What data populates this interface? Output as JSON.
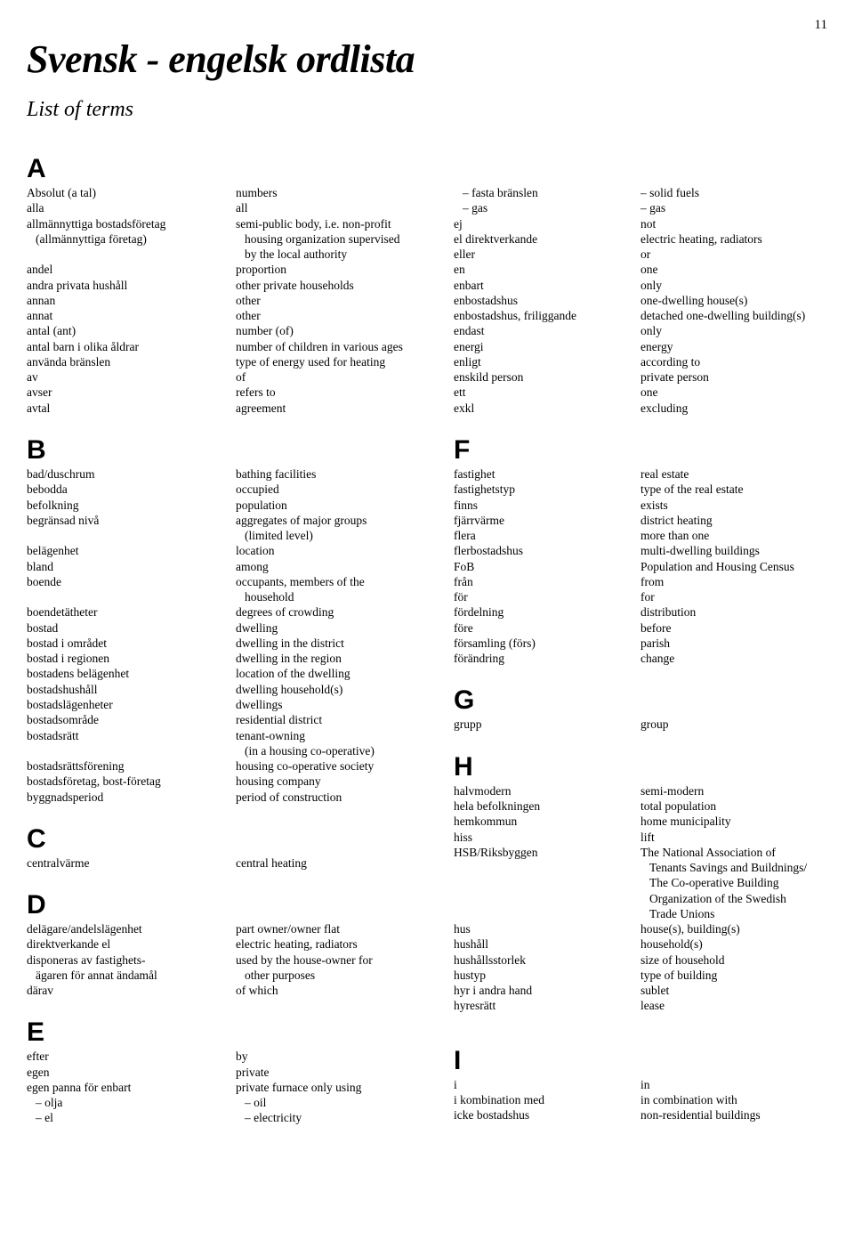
{
  "page_number": "11",
  "title": "Svensk - engelsk ordlista",
  "subtitle": "List of terms",
  "A_sv": [
    "Absolut (a tal)",
    "alla",
    "allmännyttiga bostadsföretag",
    "  (allmännyttiga företag)",
    "",
    "andel",
    "andra privata hushåll",
    "annan",
    "annat",
    "antal (ant)",
    "antal barn i olika åldrar",
    "använda bränslen",
    "av",
    "avser",
    "avtal"
  ],
  "A_en": [
    "numbers",
    "all",
    "semi-public body, i.e. non-profit",
    "  housing organization supervised",
    "  by the local authority",
    "proportion",
    "other private households",
    "other",
    "other",
    "number (of)",
    "number of children in various ages",
    "type of energy used for heating",
    "of",
    "refers to",
    "agreement"
  ],
  "B_sv": [
    "bad/duschrum",
    "bebodda",
    "befolkning",
    "begränsad nivå",
    "",
    "belägenhet",
    "bland",
    "boende",
    "",
    "boendetätheter",
    "bostad",
    "bostad i området",
    "bostad i regionen",
    "bostadens belägenhet",
    "bostadshushåll",
    "bostadslägenheter",
    "bostadsområde",
    "bostadsrätt",
    "",
    "bostadsrättsförening",
    "bostadsföretag, bost-företag",
    "byggnadsperiod"
  ],
  "B_en": [
    "bathing facilities",
    "occupied",
    "population",
    "aggregates of major groups",
    "  (limited level)",
    "location",
    "among",
    "occupants, members of the",
    "  household",
    "degrees of crowding",
    "dwelling",
    "dwelling in the district",
    "dwelling in the region",
    "location of the dwelling",
    "dwelling household(s)",
    "dwellings",
    "residential district",
    "tenant-owning",
    "  (in a housing co-operative)",
    "housing co-operative society",
    "housing company",
    "period of construction"
  ],
  "C_sv": [
    "centralvärme"
  ],
  "C_en": [
    "central heating"
  ],
  "D_sv": [
    "delägare/andelslägenhet",
    "direktverkande el",
    "disponeras av fastighets-",
    "  ägaren för annat ändamål",
    "därav"
  ],
  "D_en": [
    "part owner/owner flat",
    "electric heating, radiators",
    "used by the house-owner for",
    "  other purposes",
    "of which"
  ],
  "E_sv": [
    "efter",
    "egen",
    "egen panna för enbart",
    "  – olja",
    "  – el"
  ],
  "E_en": [
    "by",
    "private",
    "private furnace only using",
    "  – oil",
    "  – electricity"
  ],
  "E2_sv": [
    "  – fasta bränslen",
    "  – gas",
    "ej",
    "el direktverkande",
    "eller",
    "en",
    "enbart",
    "enbostadshus",
    "enbostadshus, friliggande",
    "endast",
    "energi",
    "enligt",
    "enskild person",
    "ett",
    "exkl"
  ],
  "E2_en": [
    "– solid fuels",
    "– gas",
    "not",
    "electric heating, radiators",
    "or",
    "one",
    "only",
    "one-dwelling house(s)",
    "detached one-dwelling building(s)",
    "only",
    "energy",
    "according to",
    "private person",
    "one",
    "excluding"
  ],
  "F_sv": [
    "fastighet",
    "fastighetstyp",
    "finns",
    "fjärrvärme",
    "flera",
    "flerbostadshus",
    "FoB",
    "från",
    "för",
    "fördelning",
    "före",
    "församling (förs)",
    "förändring"
  ],
  "F_en": [
    "real estate",
    "type of the real estate",
    "exists",
    "district heating",
    "more than one",
    "multi-dwelling buildings",
    "Population and Housing Census",
    "from",
    "for",
    "distribution",
    "before",
    "parish",
    "change"
  ],
  "G_sv": [
    "grupp"
  ],
  "G_en": [
    "group"
  ],
  "H_sv": [
    "halvmodern",
    "hela befolkningen",
    "hemkommun",
    "hiss",
    "HSB/Riksbyggen",
    "",
    "",
    "",
    "",
    "hus",
    "hushåll",
    "hushållsstorlek",
    "hustyp",
    "hyr i andra hand",
    "hyresrätt"
  ],
  "H_en": [
    "semi-modern",
    "total population",
    "home municipality",
    "lift",
    "The National Association of",
    "  Tenants Savings and Buildnings/",
    "  The Co-operative Building",
    "  Organization of the Swedish",
    "  Trade Unions",
    "house(s), building(s)",
    "household(s)",
    "size of household",
    "type of building",
    "sublet",
    "lease"
  ],
  "I_sv": [
    "i",
    "i kombination med",
    "icke bostadshus"
  ],
  "I_en": [
    "in",
    "in combination with",
    "non-residential buildings"
  ]
}
